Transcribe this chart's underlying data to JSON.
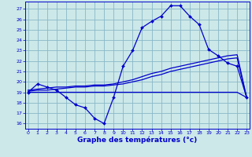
{
  "bg_color": "#cce8e8",
  "grid_color": "#88b8c8",
  "line_color": "#0000cc",
  "xlabel": "Graphe des températures (°c)",
  "xlabel_fontsize": 6.5,
  "ytick_labels": [
    "16",
    "17",
    "18",
    "19",
    "20",
    "21",
    "22",
    "23",
    "24",
    "25",
    "26",
    "27"
  ],
  "yticks": [
    16,
    17,
    18,
    19,
    20,
    21,
    22,
    23,
    24,
    25,
    26,
    27
  ],
  "xticks": [
    0,
    1,
    2,
    3,
    4,
    5,
    6,
    7,
    8,
    9,
    10,
    11,
    12,
    13,
    14,
    15,
    16,
    17,
    18,
    19,
    20,
    21,
    22,
    23
  ],
  "xlim": [
    -0.3,
    23.3
  ],
  "ylim": [
    15.5,
    27.7
  ],
  "main_x": [
    0,
    1,
    2,
    3,
    4,
    5,
    6,
    7,
    8,
    9,
    10,
    11,
    12,
    13,
    14,
    15,
    16,
    17,
    18,
    19,
    20,
    21,
    22,
    23
  ],
  "main_y": [
    19,
    19.8,
    19.5,
    19.2,
    18.5,
    17.8,
    17.5,
    16.5,
    16.0,
    18.5,
    21.5,
    23.0,
    25.2,
    25.8,
    26.3,
    27.3,
    27.3,
    26.3,
    25.5,
    23.1,
    22.5,
    21.8,
    21.5,
    18.5
  ],
  "flat_x": [
    0,
    1,
    2,
    3,
    4,
    5,
    6,
    7,
    8,
    9,
    10,
    11,
    12,
    13,
    14,
    15,
    16,
    17,
    18,
    19,
    20,
    21,
    22,
    23
  ],
  "flat_y": [
    19.0,
    19.0,
    19.0,
    19.0,
    19.0,
    19.0,
    19.0,
    19.0,
    19.0,
    19.0,
    19.0,
    19.0,
    19.0,
    19.0,
    19.0,
    19.0,
    19.0,
    19.0,
    19.0,
    19.0,
    19.0,
    19.0,
    19.0,
    18.5
  ],
  "avg1_x": [
    0,
    1,
    2,
    3,
    4,
    5,
    6,
    7,
    8,
    9,
    10,
    11,
    12,
    13,
    14,
    15,
    16,
    17,
    18,
    19,
    20,
    21,
    22,
    23
  ],
  "avg1_y": [
    19.1,
    19.2,
    19.2,
    19.3,
    19.4,
    19.5,
    19.5,
    19.6,
    19.6,
    19.7,
    19.8,
    20.0,
    20.2,
    20.5,
    20.7,
    21.0,
    21.2,
    21.4,
    21.6,
    21.8,
    22.0,
    22.2,
    22.3,
    18.5
  ],
  "avg2_x": [
    0,
    1,
    2,
    3,
    4,
    5,
    6,
    7,
    8,
    9,
    10,
    11,
    12,
    13,
    14,
    15,
    16,
    17,
    18,
    19,
    20,
    21,
    22,
    23
  ],
  "avg2_y": [
    19.2,
    19.3,
    19.4,
    19.5,
    19.5,
    19.6,
    19.6,
    19.7,
    19.7,
    19.8,
    20.0,
    20.2,
    20.5,
    20.8,
    21.0,
    21.3,
    21.5,
    21.7,
    21.9,
    22.1,
    22.3,
    22.5,
    22.6,
    18.5
  ]
}
